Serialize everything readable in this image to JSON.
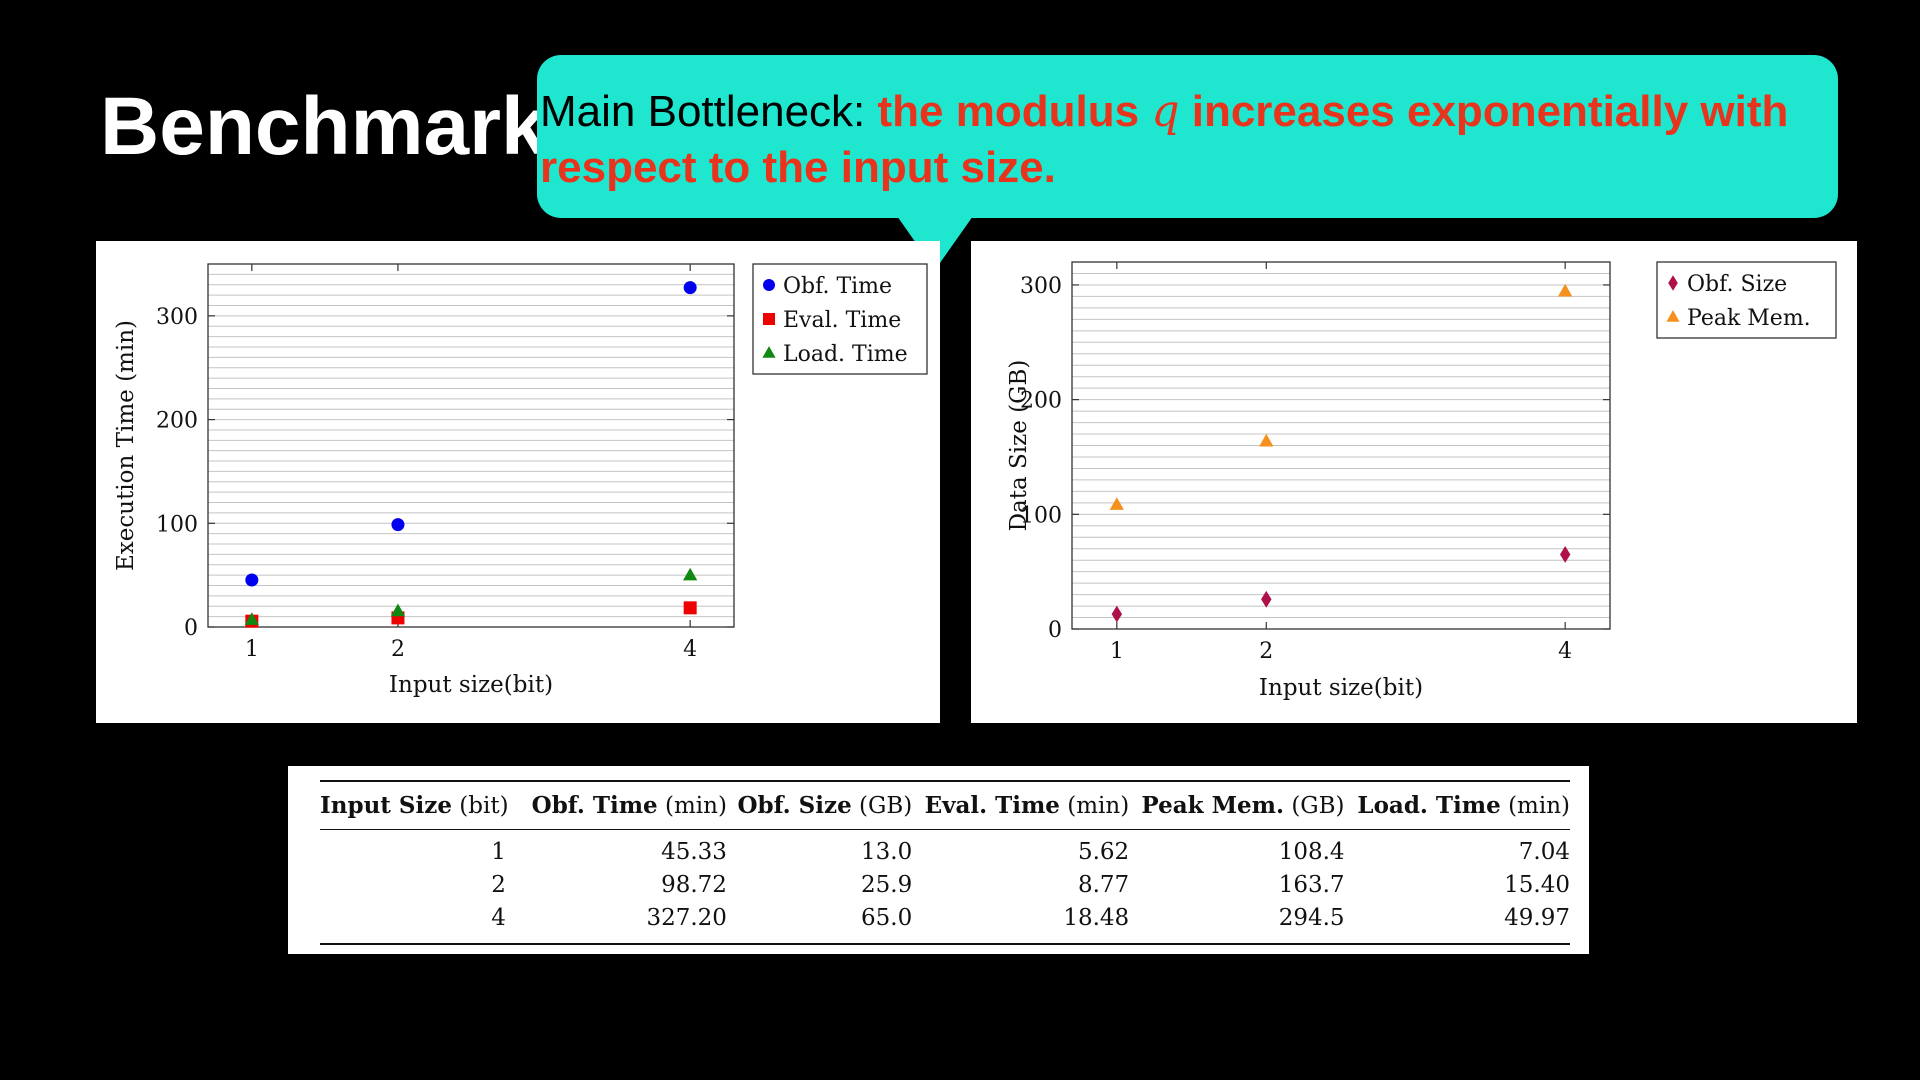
{
  "slide": {
    "title": "Benchmark"
  },
  "callout": {
    "prefix": "Main Bottleneck:",
    "emph_before": "the modulus",
    "variable": "q",
    "emph_after": "increases exponentially with respect to the input size.",
    "bg_color": "#1ee6cf",
    "emph_color": "#e8341c"
  },
  "chart_data": [
    {
      "type": "scatter",
      "xlabel": "Input size(bit)",
      "ylabel": "Execution Time (min)",
      "x": [
        1,
        2,
        4
      ],
      "xticks": [
        1,
        2,
        4
      ],
      "yticks": [
        0,
        100,
        200,
        300
      ],
      "xlim": [
        0.7,
        4.3
      ],
      "ylim": [
        0,
        350
      ],
      "grid": "horizontal-minor",
      "legend_position": "outside-right-top",
      "series": [
        {
          "name": "Obf. Time",
          "values": [
            45.33,
            98.72,
            327.2
          ],
          "marker": "circle",
          "color": "#0000ee"
        },
        {
          "name": "Eval. Time",
          "values": [
            5.62,
            8.77,
            18.48
          ],
          "marker": "square",
          "color": "#ee0000"
        },
        {
          "name": "Load. Time",
          "values": [
            7.04,
            15.4,
            49.97
          ],
          "marker": "triangle",
          "color": "#118811"
        }
      ]
    },
    {
      "type": "scatter",
      "xlabel": "Input size(bit)",
      "ylabel": "Data Size (GB)",
      "x": [
        1,
        2,
        4
      ],
      "xticks": [
        1,
        2,
        4
      ],
      "yticks": [
        0,
        100,
        200,
        300
      ],
      "xlim": [
        0.7,
        4.3
      ],
      "ylim": [
        0,
        320
      ],
      "grid": "horizontal-minor",
      "legend_position": "outside-right-top",
      "series": [
        {
          "name": "Obf. Size",
          "values": [
            13.0,
            25.9,
            65.0
          ],
          "marker": "diamond",
          "color": "#b0104a"
        },
        {
          "name": "Peak Mem.",
          "values": [
            108.4,
            163.7,
            294.5
          ],
          "marker": "triangle",
          "color": "#f5901e"
        }
      ]
    }
  ],
  "table": {
    "headers": [
      {
        "bold": "Input Size",
        "unit": "(bit)"
      },
      {
        "bold": "Obf. Time",
        "unit": "(min)"
      },
      {
        "bold": "Obf. Size",
        "unit": "(GB)"
      },
      {
        "bold": "Eval. Time",
        "unit": "(min)"
      },
      {
        "bold": "Peak Mem.",
        "unit": "(GB)"
      },
      {
        "bold": "Load. Time",
        "unit": "(min)"
      }
    ],
    "rows": [
      [
        "1",
        "45.33",
        "13.0",
        "5.62",
        "108.4",
        "7.04"
      ],
      [
        "2",
        "98.72",
        "25.9",
        "8.77",
        "163.7",
        "15.40"
      ],
      [
        "4",
        "327.20",
        "65.0",
        "18.48",
        "294.5",
        "49.97"
      ]
    ]
  }
}
